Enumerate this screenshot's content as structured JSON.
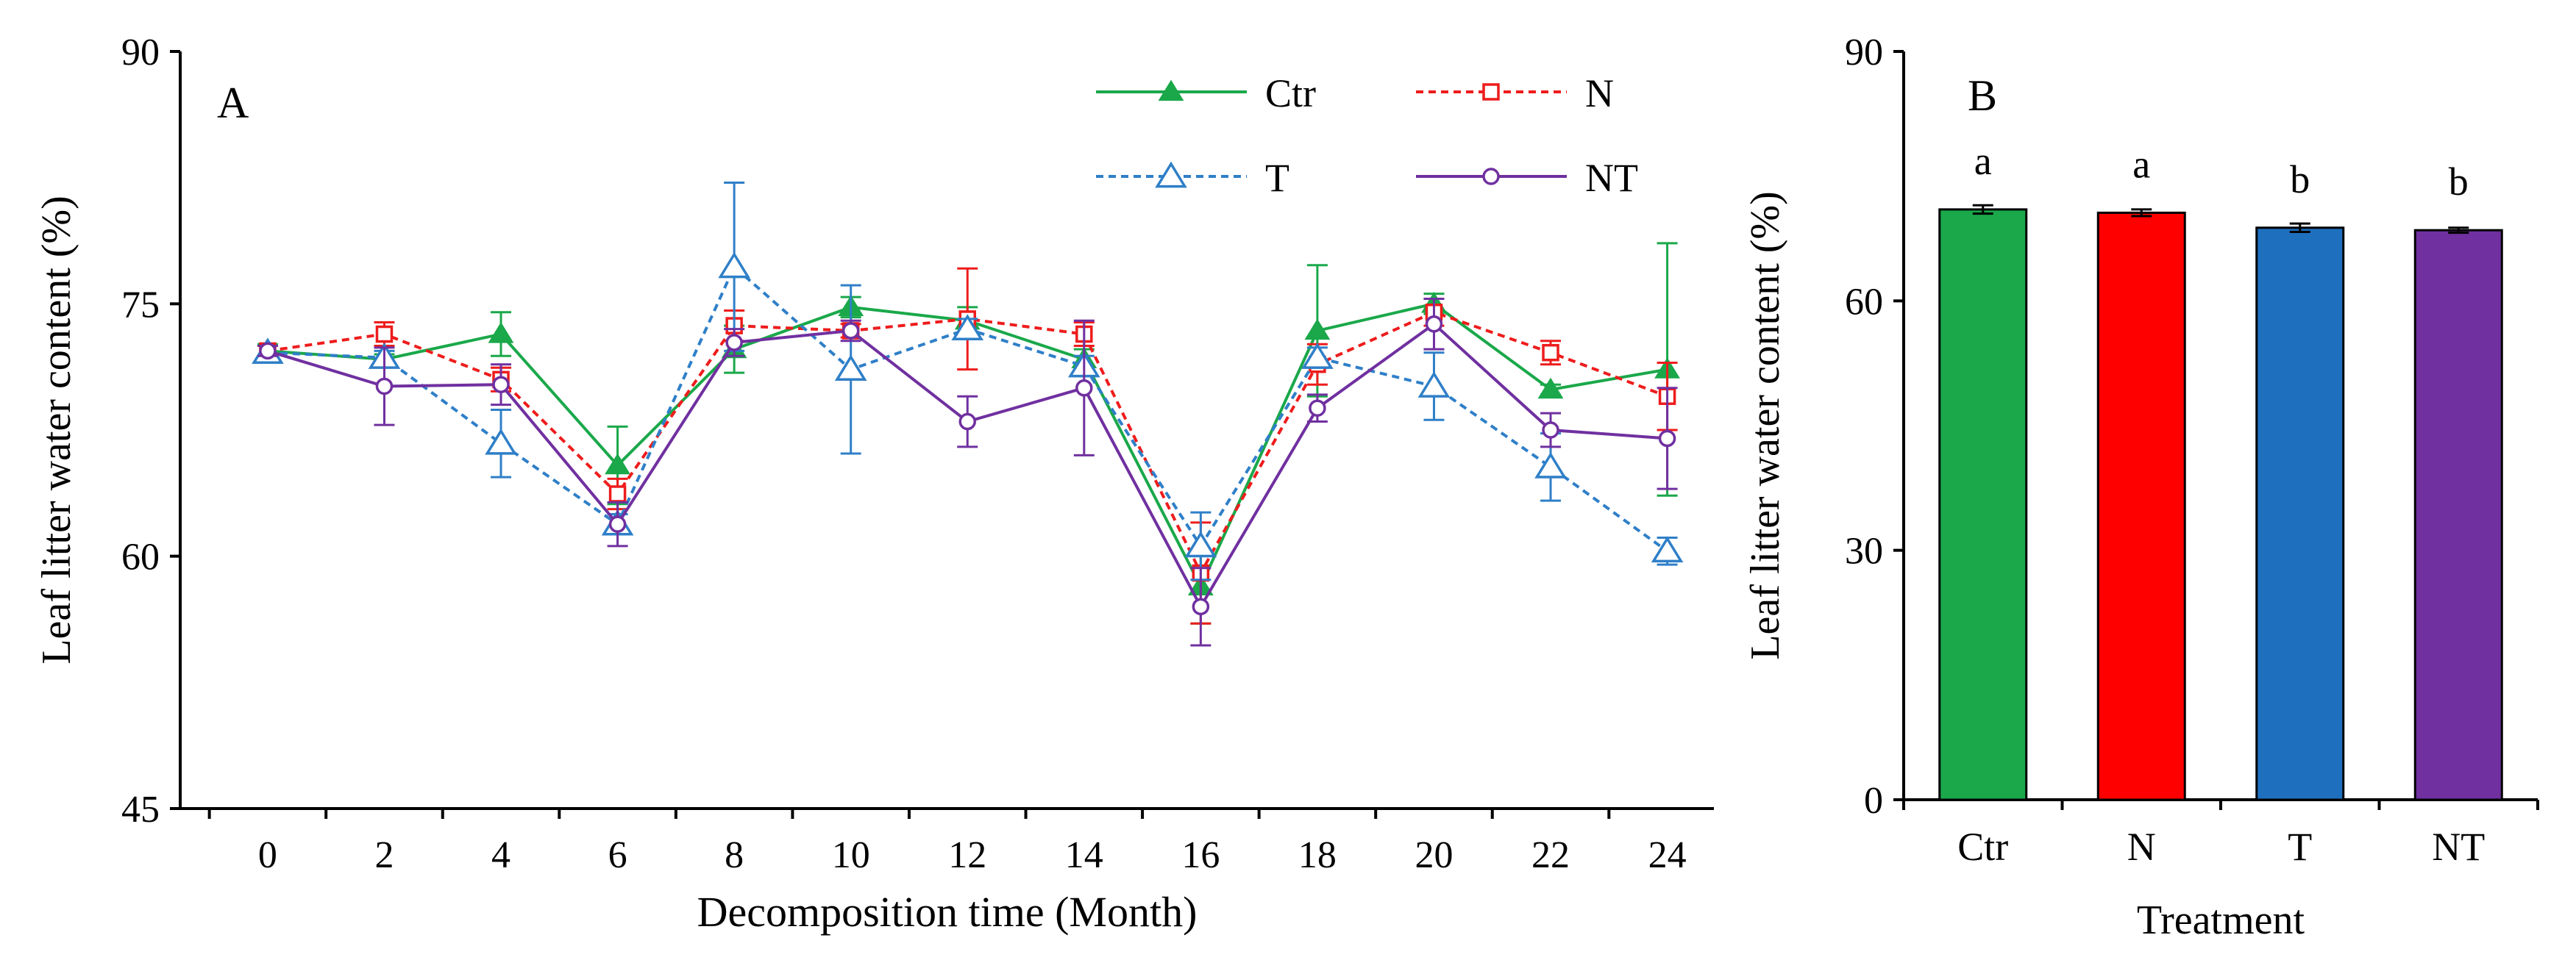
{
  "chart_data": [
    {
      "panel_label": "A",
      "type": "line",
      "xlabel": "Decomposition time (Month)",
      "ylabel": "Leaf litter water content (%)",
      "xlim": [
        -1.5,
        24.8
      ],
      "ylim": [
        45,
        90
      ],
      "x_ticks": [
        0,
        2,
        4,
        6,
        8,
        10,
        12,
        14,
        16,
        18,
        20,
        22,
        24
      ],
      "y_ticks": [
        45,
        60,
        75,
        90
      ],
      "x": [
        0,
        2,
        4,
        6,
        8,
        10,
        12,
        14,
        16,
        18,
        20,
        22,
        24
      ],
      "legend": {
        "position": "top-right",
        "entries": [
          "Ctr",
          "N",
          "T",
          "NT"
        ]
      },
      "series": [
        {
          "name": "Ctr",
          "color": "#1aa84a",
          "dash": "solid",
          "marker": "filled-triangle",
          "values": [
            72.2,
            71.7,
            73.2,
            65.4,
            72.3,
            74.8,
            74.0,
            71.7,
            58.2,
            73.4,
            75.0,
            69.9,
            71.1
          ],
          "errors": [
            0.4,
            0.3,
            1.3,
            2.3,
            1.4,
            0.6,
            0.8,
            0.6,
            2.2,
            3.9,
            0.6,
            0.3,
            7.5
          ]
        },
        {
          "name": "N",
          "color": "#ee1c1c",
          "dash": "dotted",
          "marker": "open-square",
          "values": [
            72.2,
            73.2,
            70.5,
            63.7,
            73.7,
            73.4,
            74.1,
            73.2,
            59.0,
            71.4,
            74.5,
            72.1,
            69.5
          ],
          "errors": [
            0.3,
            0.7,
            0.7,
            0.9,
            0.9,
            0.4,
            3.0,
            0.7,
            3.0,
            1.2,
            0.8,
            0.7,
            2.0
          ]
        },
        {
          "name": "T",
          "color": "#2f7fc8",
          "dash": "dotted",
          "marker": "open-triangle",
          "values": [
            72.1,
            71.8,
            66.7,
            61.9,
            77.2,
            71.1,
            73.5,
            71.3,
            60.6,
            71.8,
            70.1,
            65.3,
            60.3
          ],
          "errors": [
            0.4,
            0.4,
            2.0,
            0.6,
            5.0,
            5.0,
            0.6,
            0.6,
            2.0,
            0.6,
            2.0,
            2.0,
            0.8
          ]
        },
        {
          "name": "NT",
          "color": "#7030a0",
          "dash": "solid",
          "marker": "open-circle",
          "values": [
            72.2,
            70.1,
            70.2,
            61.9,
            72.7,
            73.4,
            68.0,
            70.0,
            57.0,
            68.8,
            73.8,
            67.5,
            67.0
          ],
          "errors": [
            0.3,
            2.3,
            1.2,
            1.3,
            0.8,
            0.6,
            1.5,
            4.0,
            2.3,
            0.8,
            1.5,
            1.0,
            3.0
          ]
        }
      ]
    },
    {
      "panel_label": "B",
      "type": "bar",
      "xlabel": "Treatment",
      "ylabel": "Leaf litter water content (%)",
      "ylim": [
        0,
        90
      ],
      "y_ticks": [
        0,
        30,
        60,
        90
      ],
      "categories": [
        "Ctr",
        "N",
        "T",
        "NT"
      ],
      "values": [
        71.0,
        70.6,
        68.8,
        68.5
      ],
      "errors": [
        0.5,
        0.4,
        0.5,
        0.3
      ],
      "colors": [
        "#1aa84a",
        "#ff0000",
        "#1f6fbf",
        "#7030a0"
      ],
      "significance_letters": [
        "a",
        "a",
        "b",
        "b"
      ]
    }
  ]
}
